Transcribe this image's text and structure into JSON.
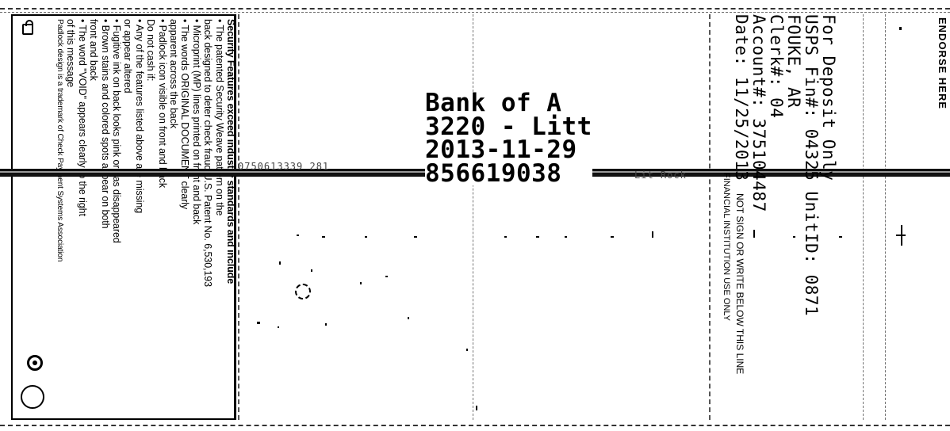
{
  "security_panel": {
    "heading": "Security Features exceed industry standards and include",
    "lines": [
      "• The patented Security Weave pattern on the",
      "  back designed to deter check fraud U.S. Patent No. 6,530,193",
      "• Microprint (MP) lines printed on front and back",
      "• The words ORIGINAL DOCUMENT clearly",
      "  apparent across the back",
      "• Padlock icon visible on front and back",
      "Do not cash if:",
      "• Any of the features listed above are missing",
      "  or appear altered",
      "• Fugitive ink on back looks pink or has disappeared",
      "• Brown stains and colored spots appear on both",
      "  front and back",
      "• The word \"VOID\" appears clearly to the right",
      "  of this message"
    ],
    "footer": "Padlock design is a trademark of Check Payment Systems Association"
  },
  "bank_imprint": {
    "line1": "Bank of A",
    "line2": "3220 - Litt",
    "line3": "2013-11-29",
    "line4": "856619038"
  },
  "micr": {
    "left_digits": "0750613339 281",
    "right_text": "Lit Rock"
  },
  "endorsement_stamp": {
    "line1": "For Deposit Only",
    "line2": "USPS Fin#: 04325   UnitID: 0871",
    "line3": "FOUKE, AR",
    "line4": "Clerk#: 04",
    "line5": "Account#: 375104487",
    "line6": "Date: 11/25/2013"
  },
  "endorse_header": "ENDORSE HERE",
  "sign_below": "NOT SIGN OR WRITE BELOW THIS LINE",
  "institution_line": "FINANCIAL INSTITUTION USE ONLY"
}
